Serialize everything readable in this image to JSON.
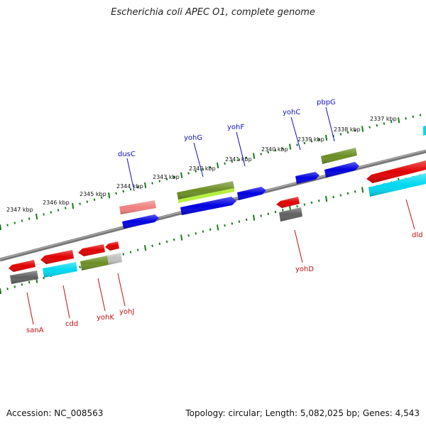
{
  "title": "Escherichia coli APEC O1, complete genome",
  "accession": "Accession: NC_008563",
  "summary": "Topology: circular; Length: 5,082,025 bp; Genes: 4,543",
  "kbp_labels": [
    "2347 kbp",
    "2346 kbp",
    "2345 kbp",
    "2344 kbp",
    "2343 kbp",
    "2342 kbp",
    "2341 kbp",
    "2340 kbp",
    "2339 kbp",
    "2338 kbp",
    "2337 kbp"
  ],
  "forward_gene_labels": [
    "dusC",
    "yohG",
    "yohF",
    "yohC",
    "pbpG"
  ],
  "reverse_gene_labels": [
    "sanA",
    "cdd",
    "yohK",
    "yohJ",
    "yohD",
    "dld"
  ],
  "colors": {
    "forward_label": "#1010c0",
    "reverse_label": "#c01010",
    "tick": "#1a7a1a",
    "backbone": "#808080",
    "gene_red": "#e00000",
    "gene_blue": "#0000e0",
    "gene_olive": "#6b8e23",
    "gene_lime": "#b6f040",
    "gene_cyan": "#00d8f0",
    "gene_pink": "#f08080",
    "gene_gray": "#606060",
    "gene_lightgray": "#c0c0c0"
  }
}
